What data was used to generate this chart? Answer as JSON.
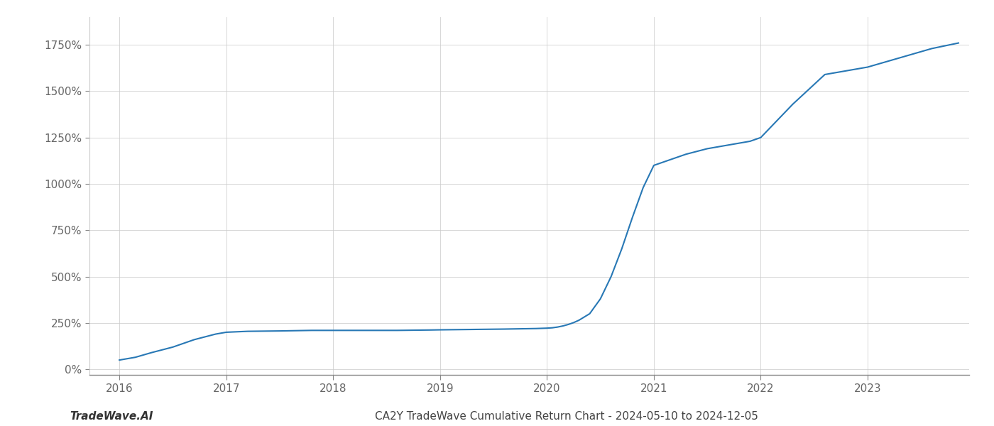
{
  "title": "CA2Y TradeWave Cumulative Return Chart - 2024-05-10 to 2024-12-05",
  "watermark": "TradeWave.AI",
  "line_color": "#2878b5",
  "background_color": "#ffffff",
  "grid_color": "#cccccc",
  "x_values": [
    2016.0,
    2016.15,
    2016.3,
    2016.5,
    2016.7,
    2016.9,
    2017.0,
    2017.2,
    2017.5,
    2017.8,
    2018.0,
    2018.3,
    2018.6,
    2018.9,
    2019.0,
    2019.3,
    2019.6,
    2019.9,
    2020.0,
    2020.05,
    2020.1,
    2020.15,
    2020.2,
    2020.25,
    2020.3,
    2020.4,
    2020.5,
    2020.6,
    2020.7,
    2020.8,
    2020.9,
    2021.0,
    2021.1,
    2021.2,
    2021.3,
    2021.5,
    2021.7,
    2021.9,
    2022.0,
    2022.3,
    2022.6,
    2022.9,
    2023.0,
    2023.3,
    2023.6,
    2023.85
  ],
  "y_values": [
    50,
    65,
    90,
    120,
    160,
    190,
    200,
    205,
    207,
    210,
    210,
    210,
    210,
    212,
    213,
    215,
    217,
    220,
    222,
    224,
    228,
    234,
    242,
    252,
    265,
    300,
    380,
    500,
    650,
    820,
    980,
    1100,
    1120,
    1140,
    1160,
    1190,
    1210,
    1230,
    1250,
    1430,
    1590,
    1620,
    1630,
    1680,
    1730,
    1760
  ],
  "xlim": [
    2015.72,
    2023.95
  ],
  "ylim": [
    -30,
    1900
  ],
  "yticks": [
    0,
    250,
    500,
    750,
    1000,
    1250,
    1500,
    1750
  ],
  "ytick_labels": [
    "0%",
    "250%",
    "500%",
    "750%",
    "1000%",
    "1250%",
    "1500%",
    "1750%"
  ],
  "xticks": [
    2016,
    2017,
    2018,
    2019,
    2020,
    2021,
    2022,
    2023
  ],
  "xtick_labels": [
    "2016",
    "2017",
    "2018",
    "2019",
    "2020",
    "2021",
    "2022",
    "2023"
  ],
  "line_width": 1.5,
  "title_fontsize": 11,
  "tick_fontsize": 11,
  "watermark_fontsize": 11
}
